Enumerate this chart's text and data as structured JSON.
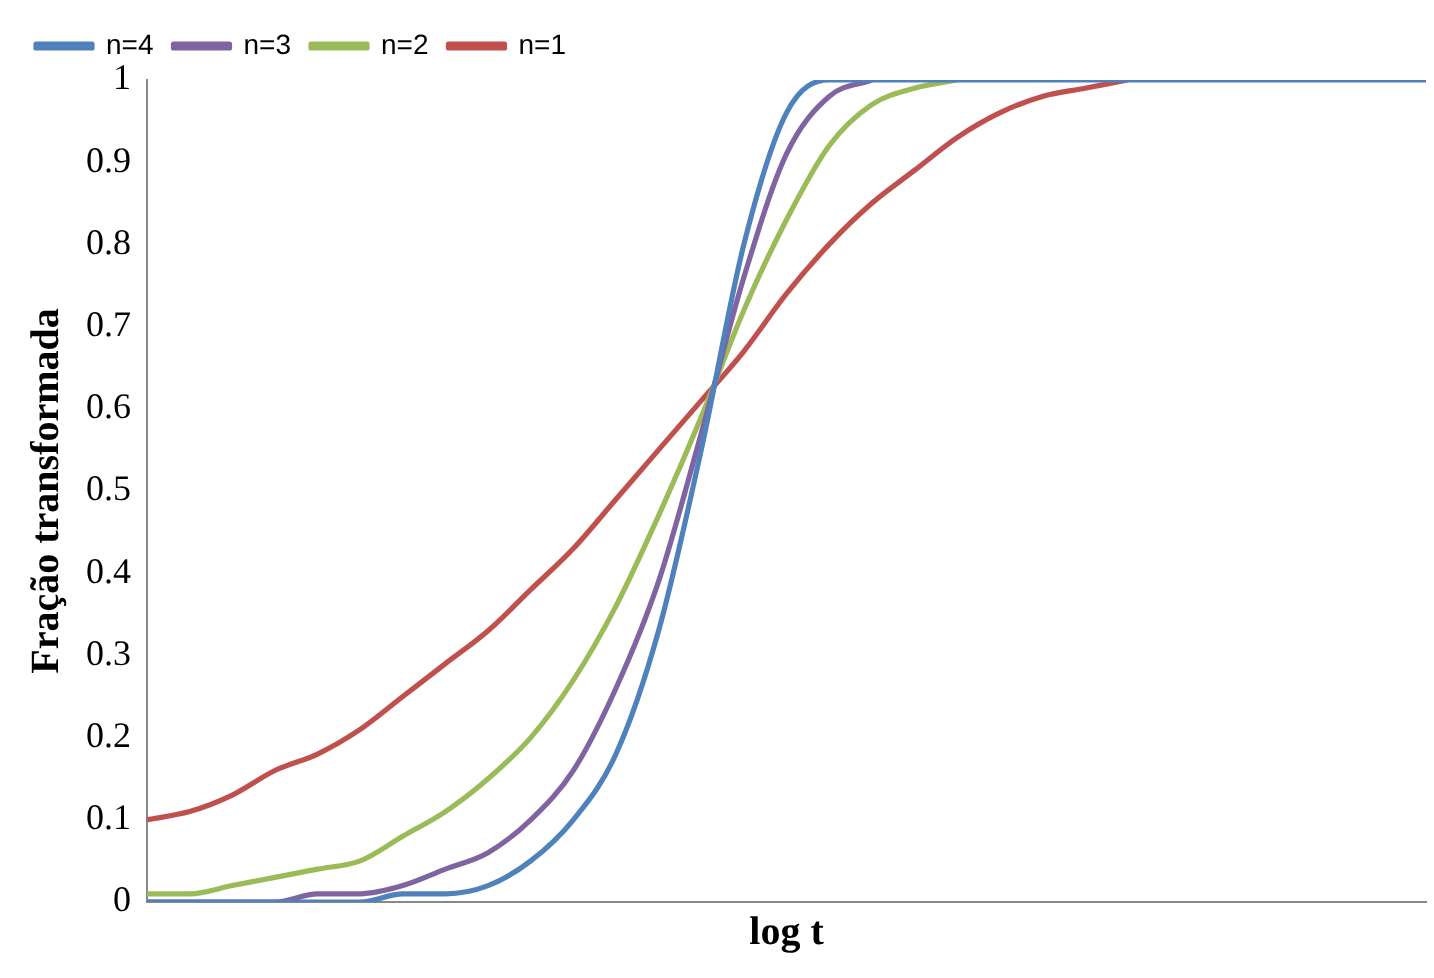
{
  "chart_data": {
    "type": "line",
    "xlabel": "log t",
    "ylabel": "Fração transformada",
    "categories": [
      null,
      null,
      null,
      null,
      null,
      null,
      null,
      null,
      null,
      null,
      null,
      null,
      null,
      null,
      null,
      null,
      null,
      null,
      null,
      null,
      null,
      null,
      null,
      null,
      null,
      null,
      null,
      null,
      null,
      null,
      null
    ],
    "series": [
      {
        "name": "n=1",
        "color": "#c0504d",
        "values": [
          0.1,
          0.11,
          0.13,
          0.16,
          0.18,
          0.21,
          0.25,
          0.29,
          0.33,
          0.38,
          0.43,
          0.49,
          0.55,
          0.61,
          0.67,
          0.74,
          0.8,
          0.85,
          0.89,
          0.93,
          0.96,
          0.98,
          0.99,
          1,
          null,
          null,
          null,
          null,
          null,
          null,
          null
        ]
      },
      {
        "name": "n=2",
        "color": "#9bbb59",
        "values": [
          0.01,
          0.01,
          0.02,
          0.03,
          0.04,
          0.05,
          0.08,
          0.11,
          0.15,
          0.2,
          0.27,
          0.36,
          0.47,
          0.59,
          0.72,
          0.83,
          0.92,
          0.97,
          0.99,
          1,
          null,
          null,
          null,
          null,
          null,
          null,
          null,
          null,
          null,
          null,
          null
        ]
      },
      {
        "name": "n=3",
        "color": "#8064a2",
        "values": [
          0,
          0,
          0,
          0,
          0.01,
          0.01,
          0.02,
          0.04,
          0.06,
          0.1,
          0.16,
          0.26,
          0.39,
          0.57,
          0.76,
          0.91,
          0.98,
          1,
          null,
          null,
          null,
          null,
          null,
          null,
          null,
          null,
          null,
          null,
          null,
          null,
          null
        ]
      },
      {
        "name": "n=4",
        "color": "#4f81bd",
        "values": [
          0,
          0,
          0,
          0,
          0,
          0,
          0.01,
          0.01,
          0.02,
          0.05,
          0.1,
          0.18,
          0.33,
          0.55,
          0.8,
          0.96,
          1,
          1,
          1,
          1,
          1,
          1,
          1,
          1,
          1,
          1,
          1,
          1,
          1,
          1,
          1
        ]
      }
    ],
    "ylim": [
      0,
      1
    ],
    "yticks": [
      0,
      0.1,
      0.2,
      0.3,
      0.4,
      0.5,
      0.6,
      0.7,
      0.8,
      0.9,
      1
    ],
    "grid": false,
    "legend": "top left",
    "marker": "none",
    "line_style": "solid",
    "tick_labels": "y"
  }
}
